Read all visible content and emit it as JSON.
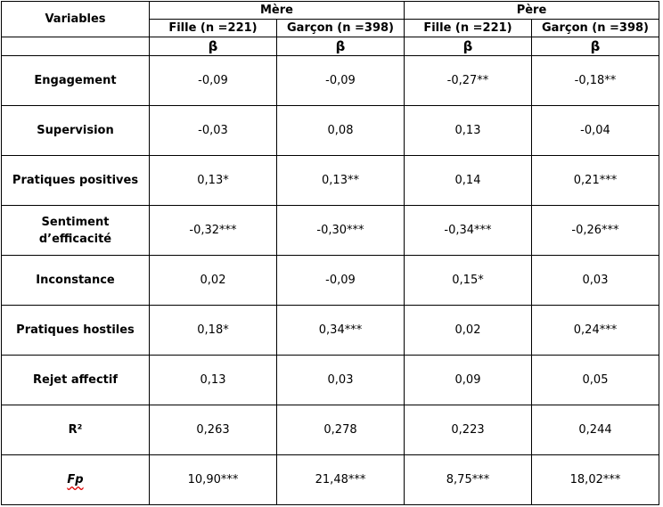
{
  "header": {
    "variables_label": "Variables",
    "groups": [
      {
        "label": "Mère",
        "columns": [
          "Fille (n =221)",
          "Garçon (n =398)"
        ]
      },
      {
        "label": "Père",
        "columns": [
          "Fille (n =221)",
          "Garçon (n =398)"
        ]
      }
    ],
    "beta_symbol": "β"
  },
  "rows": [
    {
      "label": "Engagement",
      "values": [
        "-0,09",
        "-0,09",
        "-0,27**",
        "-0,18**"
      ]
    },
    {
      "label": "Supervision",
      "values": [
        "-0,03",
        "0,08",
        "0,13",
        "-0,04"
      ]
    },
    {
      "label": "Pratiques positives",
      "values": [
        "0,13*",
        "0,13**",
        "0,14",
        "0,21***"
      ]
    },
    {
      "label": "Sentiment d’efficacité",
      "values": [
        "-0,32***",
        "-0,30***",
        "-0,34***",
        "-0,26***"
      ]
    },
    {
      "label": "Inconstance",
      "values": [
        "0,02",
        "-0,09",
        "0,15*",
        "0,03"
      ]
    },
    {
      "label": "Pratiques hostiles",
      "values": [
        "0,18*",
        "0,34***",
        "0,02",
        "0,24***"
      ]
    },
    {
      "label": "Rejet affectif",
      "values": [
        "0,13",
        "0,03",
        "0,09",
        "0,05"
      ]
    },
    {
      "label": "R²",
      "values": [
        "0,263",
        "0,278",
        "0,223",
        "0,244"
      ]
    },
    {
      "label": "Fp",
      "values": [
        "10,90***",
        "21,48***",
        "8,75***",
        "18,02***"
      ]
    }
  ]
}
